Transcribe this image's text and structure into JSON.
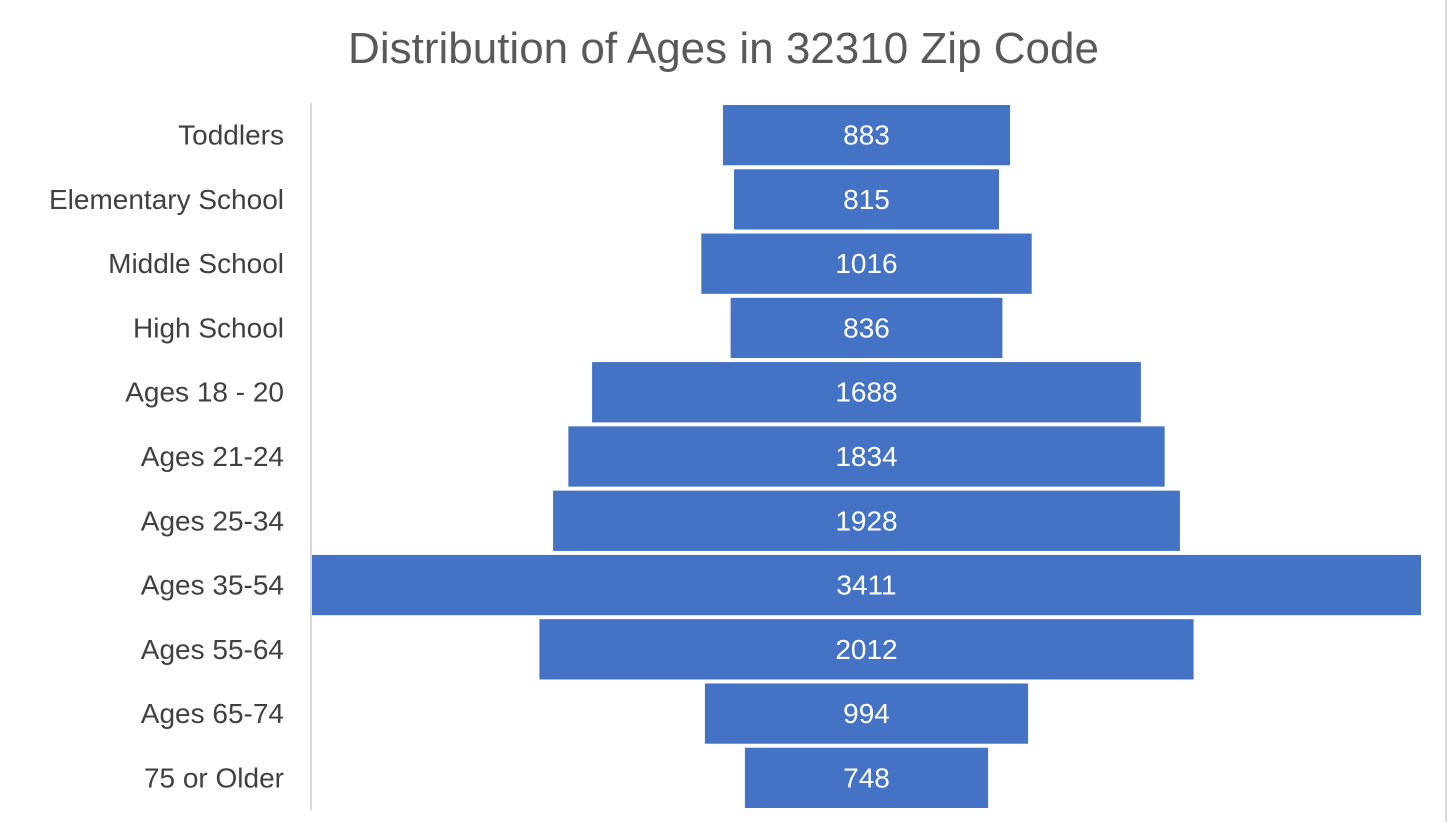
{
  "chart_data": {
    "type": "bar",
    "orientation": "horizontal",
    "layout": "centered-funnel",
    "title": "Distribution of Ages in 32310 Zip Code",
    "categories": [
      "Toddlers",
      "Elementary School",
      "Middle School",
      "High School",
      "Ages 18 - 20",
      "Ages 21-24",
      "Ages 25-34",
      "Ages 35-54",
      "Ages 55-64",
      "Ages 65-74",
      "75 or Older"
    ],
    "values": [
      883,
      815,
      1016,
      836,
      1688,
      1834,
      1928,
      3411,
      2012,
      994,
      748
    ],
    "xlim": [
      0,
      3411
    ],
    "grid": false,
    "legend": "none",
    "data_labels": "center",
    "colors": {
      "bar": "#4472C4",
      "label_text": "#ffffff",
      "category_text": "#404040",
      "axis_line": "#d9d9d9"
    }
  }
}
